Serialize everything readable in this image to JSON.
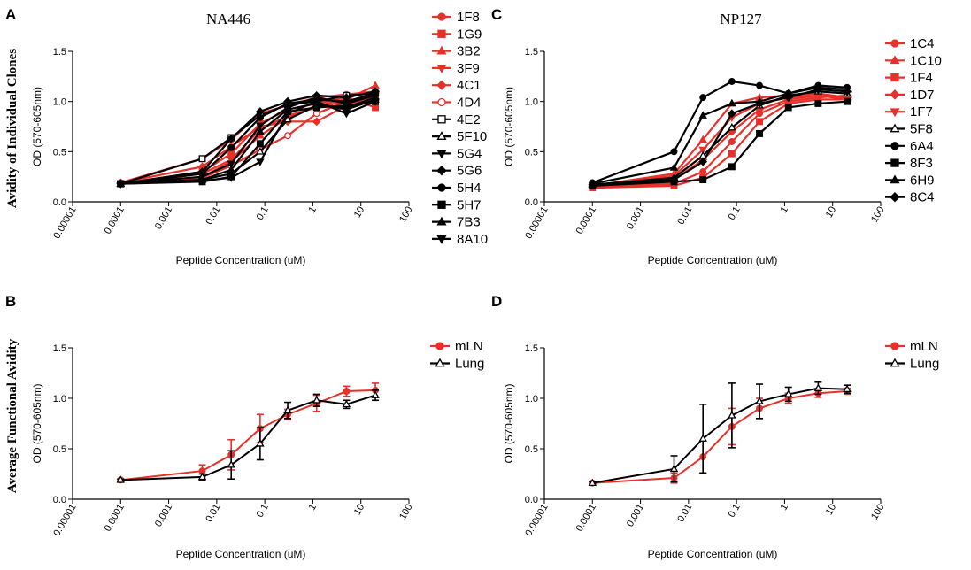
{
  "figure": {
    "row_labels": {
      "top": "Avidity of Individual Clones",
      "bottom": "Average Functional Avidity"
    }
  },
  "colors": {
    "red": "#e8302a",
    "black": "#000000"
  },
  "chart_data": [
    {
      "id": "A",
      "letter": "A",
      "type": "line",
      "title": "NA446",
      "xlabel": "Peptide Concentration (uM)",
      "ylabel": "OD (570-605nm)",
      "xscale": "log",
      "xlim": [
        1e-05,
        100
      ],
      "ylim": [
        0,
        1.5
      ],
      "xticks": [
        "0.00001",
        "0.0001",
        "0.001",
        "0.01",
        "0.1",
        "1",
        "10",
        "100"
      ],
      "yticks": [
        "0.0",
        "0.5",
        "1.0",
        "1.5"
      ],
      "x": [
        0.0001,
        0.005,
        0.02,
        0.08,
        0.3,
        1.2,
        5,
        20
      ],
      "legend_position": "right",
      "series": [
        {
          "name": "1F8",
          "color": "#e8302a",
          "marker": "circle",
          "values": [
            0.19,
            0.43,
            0.62,
            0.88,
            0.96,
            1.04,
            1.07,
            1.1
          ]
        },
        {
          "name": "1G9",
          "color": "#e8302a",
          "marker": "square",
          "values": [
            0.18,
            0.3,
            0.48,
            0.78,
            0.92,
            0.98,
            1.04,
            0.94
          ]
        },
        {
          "name": "3B2",
          "color": "#e8302a",
          "marker": "triangle",
          "values": [
            0.18,
            0.25,
            0.4,
            0.66,
            0.84,
            0.96,
            1.02,
            1.16
          ]
        },
        {
          "name": "3F9",
          "color": "#e8302a",
          "marker": "triangle-down",
          "values": [
            0.18,
            0.28,
            0.42,
            0.72,
            0.86,
            0.94,
            1.0,
            1.08
          ]
        },
        {
          "name": "4C1",
          "color": "#e8302a",
          "marker": "diamond",
          "values": [
            0.19,
            0.35,
            0.55,
            0.75,
            0.8,
            0.8,
            0.96,
            1.06
          ]
        },
        {
          "name": "4D4",
          "color": "#e8302a",
          "marker": "circle-open",
          "values": [
            0.18,
            0.24,
            0.36,
            0.52,
            0.66,
            0.88,
            1.0,
            1.04
          ]
        },
        {
          "name": "4E2",
          "color": "#000000",
          "marker": "square-open",
          "values": [
            0.18,
            0.43,
            0.64,
            0.86,
            0.97,
            1.0,
            1.06,
            1.08
          ]
        },
        {
          "name": "5F10",
          "color": "#000000",
          "marker": "triangle-open",
          "values": [
            0.18,
            0.22,
            0.28,
            0.5,
            0.82,
            0.96,
            0.94,
            1.04
          ]
        },
        {
          "name": "5G4",
          "color": "#000000",
          "marker": "triangle-down",
          "values": [
            0.18,
            0.21,
            0.24,
            0.4,
            0.88,
            1.0,
            0.88,
            1.0
          ]
        },
        {
          "name": "5G6",
          "color": "#000000",
          "marker": "diamond",
          "values": [
            0.18,
            0.3,
            0.63,
            0.9,
            1.0,
            1.06,
            1.04,
            1.1
          ]
        },
        {
          "name": "5H4",
          "color": "#000000",
          "marker": "circle",
          "values": [
            0.18,
            0.28,
            0.54,
            0.84,
            0.98,
            1.02,
            1.0,
            1.08
          ]
        },
        {
          "name": "5H7",
          "color": "#000000",
          "marker": "square",
          "values": [
            0.18,
            0.2,
            0.25,
            0.58,
            0.9,
            0.94,
            0.96,
            1.0
          ]
        },
        {
          "name": "7B3",
          "color": "#000000",
          "marker": "triangle",
          "values": [
            0.18,
            0.22,
            0.32,
            0.7,
            0.92,
            0.98,
            0.92,
            1.02
          ]
        },
        {
          "name": "8A10",
          "color": "#000000",
          "marker": "triangle-down",
          "values": [
            0.18,
            0.25,
            0.38,
            0.76,
            0.94,
            1.04,
            0.98,
            1.06
          ]
        }
      ]
    },
    {
      "id": "C",
      "letter": "C",
      "type": "line",
      "title": "NP127",
      "xlabel": "Peptide Concentration (uM)",
      "ylabel": "OD (570-605nm)",
      "xscale": "log",
      "xlim": [
        1e-05,
        100
      ],
      "ylim": [
        0,
        1.5
      ],
      "xticks": [
        "0.00001",
        "0.0001",
        "0.001",
        "0.01",
        "0.1",
        "1",
        "10",
        "100"
      ],
      "yticks": [
        "0.0",
        "0.5",
        "1.0",
        "1.5"
      ],
      "x": [
        0.0001,
        0.005,
        0.02,
        0.08,
        0.3,
        1.2,
        5,
        20
      ],
      "legend_position": "right",
      "series": [
        {
          "name": "1C4",
          "color": "#e8302a",
          "marker": "circle",
          "values": [
            0.15,
            0.18,
            0.3,
            0.6,
            0.88,
            1.0,
            1.04,
            1.06
          ]
        },
        {
          "name": "1C10",
          "color": "#e8302a",
          "marker": "triangle",
          "values": [
            0.16,
            0.28,
            0.62,
            0.98,
            1.04,
            1.06,
            1.08,
            1.04
          ]
        },
        {
          "name": "1F4",
          "color": "#e8302a",
          "marker": "square",
          "values": [
            0.14,
            0.16,
            0.24,
            0.48,
            0.8,
            0.98,
            1.02,
            1.02
          ]
        },
        {
          "name": "1D7",
          "color": "#e8302a",
          "marker": "diamond",
          "values": [
            0.15,
            0.22,
            0.42,
            0.7,
            0.92,
            1.02,
            1.06,
            1.04
          ]
        },
        {
          "name": "1F7",
          "color": "#e8302a",
          "marker": "triangle-down",
          "values": [
            0.16,
            0.26,
            0.52,
            0.84,
            0.98,
            1.04,
            1.06,
            1.02
          ]
        },
        {
          "name": "5F8",
          "color": "#000000",
          "marker": "triangle-open",
          "values": [
            0.17,
            0.24,
            0.46,
            0.74,
            0.96,
            1.06,
            1.1,
            1.08
          ]
        },
        {
          "name": "6A4",
          "color": "#000000",
          "marker": "circle",
          "values": [
            0.19,
            0.5,
            1.04,
            1.2,
            1.16,
            1.08,
            1.16,
            1.14
          ]
        },
        {
          "name": "8F3",
          "color": "#000000",
          "marker": "square",
          "values": [
            0.16,
            0.2,
            0.22,
            0.35,
            0.68,
            0.94,
            0.98,
            1.0
          ]
        },
        {
          "name": "6H9",
          "color": "#000000",
          "marker": "triangle",
          "values": [
            0.18,
            0.34,
            0.86,
            0.98,
            1.0,
            1.08,
            1.14,
            1.12
          ]
        },
        {
          "name": "8C4",
          "color": "#000000",
          "marker": "diamond",
          "values": [
            0.17,
            0.22,
            0.4,
            0.88,
            0.98,
            1.04,
            1.12,
            1.1
          ]
        }
      ]
    },
    {
      "id": "B",
      "letter": "B",
      "type": "line",
      "title": "",
      "xlabel": "Peptide Concentration (uM)",
      "ylabel": "OD (570-605nm)",
      "xscale": "log",
      "xlim": [
        1e-05,
        100
      ],
      "ylim": [
        0,
        1.5
      ],
      "xticks": [
        "0.00001",
        "0.0001",
        "0.001",
        "0.01",
        "0.1",
        "1",
        "10",
        "100"
      ],
      "yticks": [
        "0.0",
        "0.5",
        "1.0",
        "1.5"
      ],
      "x": [
        0.0001,
        0.005,
        0.02,
        0.08,
        0.3,
        1.2,
        5,
        20
      ],
      "legend_position": "right",
      "series": [
        {
          "name": "mLN",
          "color": "#e8302a",
          "marker": "circle",
          "values": [
            0.19,
            0.28,
            0.44,
            0.7,
            0.84,
            0.95,
            1.07,
            1.08
          ],
          "errors": [
            0.01,
            0.06,
            0.15,
            0.14,
            0.05,
            0.08,
            0.05,
            0.07
          ]
        },
        {
          "name": "Lung",
          "color": "#000000",
          "marker": "triangle-open",
          "values": [
            0.19,
            0.22,
            0.34,
            0.55,
            0.88,
            0.98,
            0.94,
            1.03
          ],
          "errors": [
            0.01,
            0.03,
            0.14,
            0.16,
            0.08,
            0.06,
            0.04,
            0.05
          ]
        }
      ]
    },
    {
      "id": "D",
      "letter": "D",
      "type": "line",
      "title": "",
      "xlabel": "Peptide Concentration (uM)",
      "ylabel": "OD (570-605nm)",
      "xscale": "log",
      "xlim": [
        1e-05,
        100
      ],
      "ylim": [
        0,
        1.5
      ],
      "xticks": [
        "0.00001",
        "0.0001",
        "0.001",
        "0.01",
        "0.1",
        "1",
        "10",
        "100"
      ],
      "yticks": [
        "0.0",
        "0.5",
        "1.0",
        "1.5"
      ],
      "x": [
        0.0001,
        0.005,
        0.02,
        0.08,
        0.3,
        1.2,
        5,
        20
      ],
      "legend_position": "right",
      "series": [
        {
          "name": "mLN",
          "color": "#e8302a",
          "marker": "circle",
          "values": [
            0.16,
            0.21,
            0.42,
            0.72,
            0.9,
            1.0,
            1.05,
            1.07
          ],
          "errors": [
            0.01,
            0.05,
            0.16,
            0.18,
            0.1,
            0.05,
            0.04,
            0.03
          ]
        },
        {
          "name": "Lung",
          "color": "#000000",
          "marker": "triangle-open",
          "values": [
            0.16,
            0.3,
            0.6,
            0.83,
            0.97,
            1.04,
            1.1,
            1.09
          ],
          "errors": [
            0.01,
            0.13,
            0.34,
            0.32,
            0.17,
            0.07,
            0.06,
            0.04
          ]
        }
      ]
    }
  ]
}
